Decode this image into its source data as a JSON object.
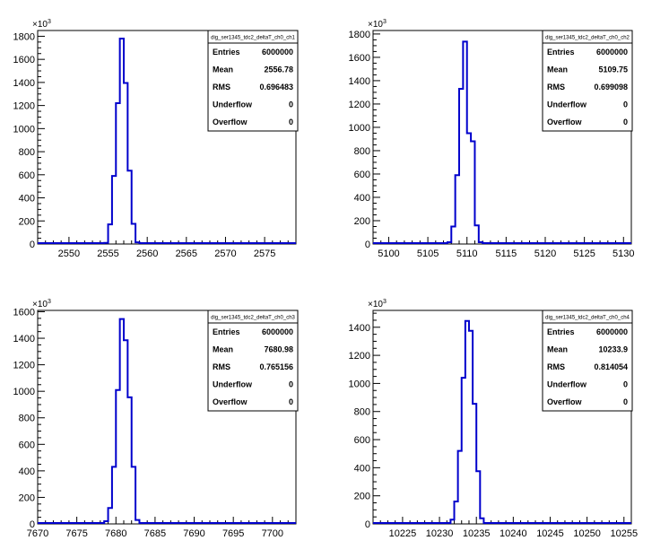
{
  "chart_data": [
    {
      "type": "bar",
      "stats_title": "dig_ser1345_tdc2_deltaT_ch0_ch1",
      "stats": [
        {
          "label": "Entries",
          "value": "6000000"
        },
        {
          "label": "Mean",
          "value": "2556.78"
        },
        {
          "label": "RMS",
          "value": "0.696483"
        },
        {
          "label": "Underflow",
          "value": "0"
        },
        {
          "label": "Overflow",
          "value": "0"
        }
      ],
      "y_exponent": "10",
      "y_exponent_power": "3",
      "xlim": [
        2546,
        2579
      ],
      "ylim": [
        0,
        1850
      ],
      "x_ticks": [
        2550,
        2555,
        2560,
        2565,
        2570,
        2575
      ],
      "y_ticks": [
        0,
        200,
        400,
        600,
        800,
        1000,
        1200,
        1400,
        1600,
        1800
      ],
      "y_tick_labels": [
        "0",
        "200",
        "400",
        "600",
        "800",
        "1000",
        "1200",
        "1400",
        "1600",
        "1800"
      ],
      "bin_width": 0.5,
      "bins_x": [
        2554.5,
        2555.0,
        2555.5,
        2556.0,
        2556.5,
        2557.0,
        2557.5,
        2558.0,
        2558.5
      ],
      "bins_y": [
        10,
        170,
        590,
        1220,
        1780,
        1395,
        635,
        175,
        15
      ]
    },
    {
      "type": "bar",
      "stats_title": "dig_ser1345_tdc2_deltaT_ch0_ch2",
      "stats": [
        {
          "label": "Entries",
          "value": "6000000"
        },
        {
          "label": "Mean",
          "value": "5109.75"
        },
        {
          "label": "RMS",
          "value": "0.699098"
        },
        {
          "label": "Underflow",
          "value": "0"
        },
        {
          "label": "Overflow",
          "value": "0"
        }
      ],
      "y_exponent": "10",
      "y_exponent_power": "3",
      "xlim": [
        5098,
        5131
      ],
      "ylim": [
        0,
        1830
      ],
      "x_ticks": [
        5100,
        5105,
        5110,
        5115,
        5120,
        5125,
        5130
      ],
      "y_ticks": [
        0,
        200,
        400,
        600,
        800,
        1000,
        1200,
        1400,
        1600,
        1800
      ],
      "y_tick_labels": [
        "0",
        "200",
        "400",
        "600",
        "800",
        "1000",
        "1200",
        "1400",
        "1600",
        "1800"
      ],
      "bin_width": 0.5,
      "bins_x": [
        5107.5,
        5108.0,
        5108.5,
        5109.0,
        5109.5,
        5110.0,
        5110.5,
        5111.0,
        5111.5
      ],
      "bins_y": [
        15,
        150,
        590,
        1330,
        1735,
        950,
        880,
        160,
        15
      ]
    },
    {
      "type": "bar",
      "stats_title": "dig_ser1345_tdc2_deltaT_ch0_ch3",
      "stats": [
        {
          "label": "Entries",
          "value": "6000000"
        },
        {
          "label": "Mean",
          "value": "7680.98"
        },
        {
          "label": "RMS",
          "value": "0.765156"
        },
        {
          "label": "Underflow",
          "value": "0"
        },
        {
          "label": "Overflow",
          "value": "0"
        }
      ],
      "y_exponent": "10",
      "y_exponent_power": "3",
      "xlim": [
        7670,
        7703
      ],
      "ylim": [
        0,
        1610
      ],
      "x_ticks": [
        7670,
        7675,
        7680,
        7685,
        7690,
        7695,
        7700
      ],
      "y_ticks": [
        0,
        200,
        400,
        600,
        800,
        1000,
        1200,
        1400,
        1600
      ],
      "y_tick_labels": [
        "0",
        "200",
        "400",
        "600",
        "800",
        "1000",
        "1200",
        "1400",
        "1600"
      ],
      "bin_width": 0.5,
      "bins_x": [
        7678.0,
        7678.5,
        7679.0,
        7679.5,
        7680.0,
        7680.5,
        7681.0,
        7681.5,
        7682.0,
        7682.5
      ],
      "bins_y": [
        5,
        20,
        120,
        430,
        1010,
        1545,
        1385,
        955,
        430,
        30
      ]
    },
    {
      "type": "bar",
      "stats_title": "dig_ser1345_tdc2_deltaT_ch0_ch4",
      "stats": [
        {
          "label": "Entries",
          "value": "6000000"
        },
        {
          "label": "Mean",
          "value": "10233.9"
        },
        {
          "label": "RMS",
          "value": "0.814054"
        },
        {
          "label": "Underflow",
          "value": "0"
        },
        {
          "label": "Overflow",
          "value": "0"
        }
      ],
      "y_exponent": "10",
      "y_exponent_power": "3",
      "xlim": [
        10221,
        10256
      ],
      "ylim": [
        0,
        1520
      ],
      "x_ticks": [
        10225,
        10230,
        10235,
        10240,
        10245,
        10250,
        10255
      ],
      "y_ticks": [
        0,
        200,
        400,
        600,
        800,
        1000,
        1200,
        1400
      ],
      "y_tick_labels": [
        "0",
        "200",
        "400",
        "600",
        "800",
        "1000",
        "1200",
        "1400"
      ],
      "bin_width": 0.5,
      "bins_x": [
        10231.0,
        10231.5,
        10232.0,
        10232.5,
        10233.0,
        10233.5,
        10234.0,
        10234.5,
        10235.0,
        10235.5,
        10236.0
      ],
      "bins_y": [
        5,
        30,
        160,
        520,
        1040,
        1445,
        1375,
        855,
        375,
        40,
        5
      ]
    }
  ]
}
